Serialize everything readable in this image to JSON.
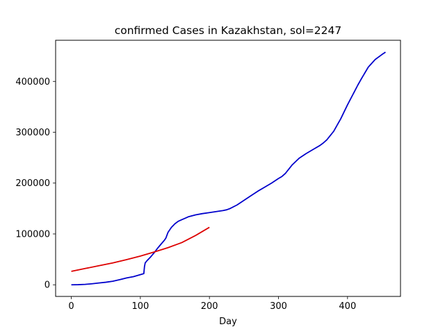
{
  "chart_data": {
    "type": "line",
    "title": "confirmed Cases in Kazakhstan, sol=2247",
    "xlabel": "Day",
    "ylabel": "",
    "xlim": [
      -22.7,
      476.7
    ],
    "ylim": [
      -22900,
      480900
    ],
    "xticks": [
      0,
      100,
      200,
      300,
      400
    ],
    "xtick_labels": [
      "0",
      "100",
      "200",
      "300",
      "400"
    ],
    "yticks": [
      0,
      100000,
      200000,
      300000,
      400000
    ],
    "ytick_labels": [
      "0",
      "100000",
      "200000",
      "300000",
      "400000"
    ],
    "grid": false,
    "legend": "none",
    "series": [
      {
        "color": "#0000cc",
        "x": [
          0,
          10,
          20,
          30,
          40,
          50,
          60,
          70,
          80,
          90,
          100,
          105,
          106,
          107,
          110,
          115,
          120,
          125,
          130,
          135,
          137,
          140,
          145,
          150,
          155,
          160,
          165,
          170,
          180,
          190,
          200,
          210,
          220,
          225,
          230,
          240,
          250,
          260,
          270,
          280,
          290,
          300,
          305,
          310,
          320,
          330,
          340,
          350,
          360,
          365,
          370,
          380,
          385,
          390,
          400,
          410,
          415,
          420,
          430,
          440,
          450,
          455
        ],
        "y": [
          0,
          200,
          800,
          2000,
          3500,
          5000,
          7000,
          10000,
          13500,
          16000,
          20000,
          22000,
          36000,
          43000,
          48000,
          55000,
          63000,
          72000,
          80000,
          88000,
          92000,
          103000,
          113000,
          120000,
          125000,
          128000,
          131000,
          134000,
          137500,
          140000,
          142000,
          144000,
          146000,
          147500,
          150000,
          157000,
          166000,
          175000,
          184000,
          192000,
          200000,
          209000,
          213000,
          219000,
          236000,
          249000,
          258000,
          266000,
          274000,
          279000,
          285000,
          302000,
          314000,
          326000,
          354000,
          380000,
          393000,
          405000,
          428000,
          443000,
          453000,
          457500
        ]
      },
      {
        "color": "#dd0000",
        "x": [
          0,
          20,
          40,
          60,
          80,
          100,
          120,
          140,
          160,
          180,
          200
        ],
        "y": [
          26500,
          32000,
          37500,
          43000,
          49500,
          56500,
          64500,
          73000,
          83000,
          97000,
          113000
        ]
      }
    ]
  }
}
